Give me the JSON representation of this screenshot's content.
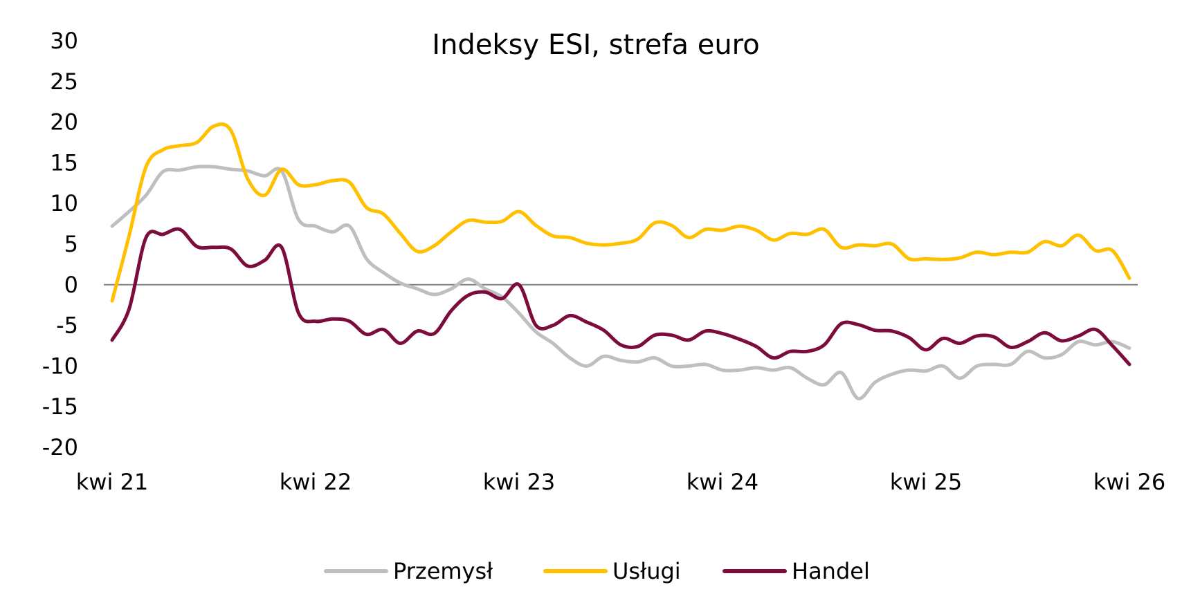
{
  "chart_data": {
    "type": "line",
    "title": "Indeksy ESI, strefa euro",
    "xlabel": "",
    "ylabel": "",
    "ylim": [
      -20,
      30
    ],
    "y_ticks": [
      30,
      25,
      20,
      15,
      10,
      5,
      0,
      -5,
      -10,
      -15,
      -20
    ],
    "x_tick_labels": [
      "kwi 21",
      "kwi 22",
      "kwi 23",
      "kwi 24",
      "kwi 25",
      "kwi 26"
    ],
    "x_tick_positions": [
      0,
      12,
      24,
      36,
      48,
      60
    ],
    "x_start": "2021-03",
    "x_end": "2026-03",
    "legend_position": "bottom",
    "zero_line": true,
    "series": [
      {
        "name": "Przemysł",
        "color": "#BFBFBF",
        "values": [
          7.2,
          9.0,
          11.0,
          13.9,
          14.1,
          14.5,
          14.5,
          14.2,
          14.0,
          13.4,
          14.0,
          8.0,
          7.2,
          6.5,
          7.2,
          3.2,
          1.5,
          0.2,
          -0.5,
          -1.2,
          -0.5,
          0.7,
          -0.5,
          -1.5,
          -3.5,
          -5.8,
          -7.2,
          -9.0,
          -10.0,
          -8.8,
          -9.3,
          -9.5,
          -9.0,
          -10.0,
          -10.0,
          -9.8,
          -10.5,
          -10.5,
          -10.2,
          -10.5,
          -10.2,
          -11.5,
          -12.3,
          -10.8,
          -14.0,
          -12.0,
          -11.0,
          -10.5,
          -10.6,
          -10.0,
          -11.5,
          -10.0,
          -9.8,
          -9.8,
          -8.2,
          -9.0,
          -8.6,
          -7.0,
          -7.4,
          -7.0,
          -7.8
        ]
      },
      {
        "name": "Usługi",
        "color": "#FFC000",
        "values": [
          -2.0,
          6.0,
          14.5,
          16.6,
          17.1,
          17.5,
          19.5,
          19.0,
          13.0,
          11.0,
          14.2,
          12.3,
          12.3,
          12.8,
          12.6,
          9.5,
          8.7,
          6.3,
          4.1,
          4.8,
          6.5,
          7.9,
          7.7,
          7.8,
          9.0,
          7.3,
          6.0,
          5.8,
          5.1,
          4.9,
          5.1,
          5.6,
          7.6,
          7.3,
          5.8,
          6.8,
          6.7,
          7.2,
          6.7,
          5.5,
          6.3,
          6.2,
          6.8,
          4.6,
          4.9,
          4.8,
          5.0,
          3.2,
          3.2,
          3.1,
          3.3,
          4.0,
          3.7,
          4.0,
          4.0,
          5.3,
          4.8,
          6.1,
          4.2,
          4.2,
          0.8
        ]
      },
      {
        "name": "Handel",
        "color": "#7B0C3C",
        "values": [
          -6.8,
          -3.0,
          5.8,
          6.2,
          6.8,
          4.7,
          4.6,
          4.4,
          2.3,
          3.0,
          4.6,
          -3.5,
          -4.5,
          -4.2,
          -4.5,
          -6.1,
          -5.5,
          -7.2,
          -5.7,
          -6.0,
          -3.2,
          -1.3,
          -0.9,
          -1.7,
          0.0,
          -5.0,
          -5.0,
          -3.8,
          -4.6,
          -5.6,
          -7.4,
          -7.6,
          -6.2,
          -6.2,
          -6.8,
          -5.7,
          -6.0,
          -6.7,
          -7.6,
          -9.0,
          -8.2,
          -8.2,
          -7.4,
          -4.8,
          -4.9,
          -5.6,
          -5.7,
          -6.5,
          -8.0,
          -6.6,
          -7.2,
          -6.3,
          -6.4,
          -7.7,
          -7.0,
          -5.9,
          -6.9,
          -6.3,
          -5.5,
          -7.5,
          -9.8
        ]
      }
    ]
  }
}
